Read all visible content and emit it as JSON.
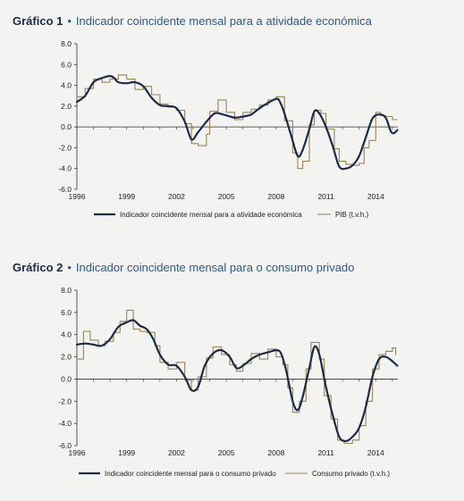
{
  "charts": [
    {
      "number": "Gráfico 1",
      "title": "Indicador coincidente mensal para a atividade económica"
    },
    {
      "number": "Gráfico 2",
      "title": "Indicador coincidente mensal para o consumo privado"
    }
  ],
  "chart_data": [
    {
      "type": "line",
      "title": "Indicador coincidente mensal para a atividade económica",
      "xlim": [
        1996,
        2015.33
      ],
      "ylim": [
        -6,
        8
      ],
      "x_ticks": [
        "1996",
        "1999",
        "2002",
        "2005",
        "2008",
        "2011",
        "2014"
      ],
      "y_ticks": [
        "8.0",
        "6.0",
        "4.0",
        "2.0",
        "0.0",
        "-2.0",
        "-4.0",
        "-6.0"
      ],
      "legend_position": "bottom",
      "series": [
        {
          "name": "Indicador coincidente mensal para a atividade económica",
          "color": "#1c2b4a",
          "style": "smooth",
          "points": [
            [
              1996.0,
              2.4
            ],
            [
              1996.5,
              3.0
            ],
            [
              1997.0,
              4.3
            ],
            [
              1997.5,
              4.7
            ],
            [
              1998.0,
              4.9
            ],
            [
              1998.25,
              4.7
            ],
            [
              1998.5,
              4.3
            ],
            [
              1999.0,
              4.2
            ],
            [
              1999.5,
              4.3
            ],
            [
              2000.0,
              3.9
            ],
            [
              2000.5,
              2.8
            ],
            [
              2001.0,
              2.1
            ],
            [
              2001.5,
              2.0
            ],
            [
              2002.0,
              1.8
            ],
            [
              2002.5,
              0.5
            ],
            [
              2002.9,
              -1.2
            ],
            [
              2003.3,
              -0.5
            ],
            [
              2003.8,
              0.5
            ],
            [
              2004.3,
              1.3
            ],
            [
              2004.8,
              1.2
            ],
            [
              2005.5,
              0.9
            ],
            [
              2006.0,
              1.0
            ],
            [
              2006.5,
              1.2
            ],
            [
              2007.0,
              1.8
            ],
            [
              2007.5,
              2.3
            ],
            [
              2008.0,
              2.7
            ],
            [
              2008.2,
              2.5
            ],
            [
              2008.5,
              1.3
            ],
            [
              2008.9,
              -0.8
            ],
            [
              2009.3,
              -2.8
            ],
            [
              2009.6,
              -2.2
            ],
            [
              2010.0,
              -0.2
            ],
            [
              2010.3,
              1.5
            ],
            [
              2010.6,
              1.3
            ],
            [
              2011.0,
              0.0
            ],
            [
              2011.4,
              -1.8
            ],
            [
              2011.8,
              -3.8
            ],
            [
              2012.2,
              -4.0
            ],
            [
              2012.6,
              -3.7
            ],
            [
              2013.0,
              -2.8
            ],
            [
              2013.4,
              -1.0
            ],
            [
              2013.8,
              0.8
            ],
            [
              2014.2,
              1.2
            ],
            [
              2014.6,
              0.9
            ],
            [
              2014.9,
              -0.4
            ],
            [
              2015.1,
              -0.6
            ],
            [
              2015.3,
              -0.3
            ]
          ]
        },
        {
          "name": "PIB (t.v.h.)",
          "color": "#9a8451",
          "style": "step",
          "points": [
            [
              1996.0,
              2.9
            ],
            [
              1996.5,
              3.7
            ],
            [
              1997.0,
              4.6
            ],
            [
              1997.5,
              4.3
            ],
            [
              1998.0,
              4.6
            ],
            [
              1998.5,
              5.0
            ],
            [
              1999.0,
              4.6
            ],
            [
              1999.5,
              3.6
            ],
            [
              2000.0,
              3.9
            ],
            [
              2000.5,
              3.1
            ],
            [
              2001.0,
              2.2
            ],
            [
              2001.5,
              1.9
            ],
            [
              2002.0,
              1.6
            ],
            [
              2002.5,
              0.3
            ],
            [
              2002.9,
              -1.6
            ],
            [
              2003.3,
              -1.8
            ],
            [
              2003.8,
              -0.7
            ],
            [
              2004.0,
              1.5
            ],
            [
              2004.5,
              2.6
            ],
            [
              2005.0,
              1.4
            ],
            [
              2005.5,
              0.7
            ],
            [
              2006.0,
              1.4
            ],
            [
              2006.5,
              1.7
            ],
            [
              2007.0,
              2.1
            ],
            [
              2007.5,
              2.6
            ],
            [
              2008.0,
              2.9
            ],
            [
              2008.5,
              0.6
            ],
            [
              2009.0,
              -2.5
            ],
            [
              2009.3,
              -4.0
            ],
            [
              2009.6,
              -3.3
            ],
            [
              2010.0,
              0.2
            ],
            [
              2010.3,
              1.6
            ],
            [
              2010.7,
              1.3
            ],
            [
              2011.0,
              -0.2
            ],
            [
              2011.5,
              -2.1
            ],
            [
              2011.8,
              -3.3
            ],
            [
              2012.2,
              -3.6
            ],
            [
              2012.6,
              -3.7
            ],
            [
              2013.0,
              -3.5
            ],
            [
              2013.3,
              -2.0
            ],
            [
              2013.6,
              -1.3
            ],
            [
              2014.0,
              1.4
            ],
            [
              2014.3,
              1.1
            ],
            [
              2014.6,
              1.0
            ],
            [
              2015.0,
              0.7
            ],
            [
              2015.3,
              0.7
            ]
          ]
        }
      ]
    },
    {
      "type": "line",
      "title": "Indicador coincidente mensal para o consumo privado",
      "xlim": [
        1996,
        2015.33
      ],
      "ylim": [
        -6,
        8
      ],
      "x_ticks": [
        "1996",
        "1999",
        "2002",
        "2005",
        "2008",
        "2011",
        "2014"
      ],
      "y_ticks": [
        "8.0",
        "6.0",
        "4.0",
        "2.0",
        "0.0",
        "-2.0",
        "-4.0",
        "-6.0"
      ],
      "legend_position": "bottom",
      "series": [
        {
          "name": "Indicador coincidente mensal para o consumo privado",
          "color": "#1c2b4a",
          "style": "smooth",
          "points": [
            [
              1996.0,
              3.1
            ],
            [
              1996.5,
              3.2
            ],
            [
              1997.0,
              3.1
            ],
            [
              1997.5,
              3.0
            ],
            [
              1998.0,
              3.6
            ],
            [
              1998.5,
              4.7
            ],
            [
              1999.0,
              5.1
            ],
            [
              1999.4,
              5.3
            ],
            [
              1999.8,
              4.8
            ],
            [
              2000.2,
              4.5
            ],
            [
              2000.6,
              3.6
            ],
            [
              2001.0,
              2.2
            ],
            [
              2001.5,
              1.3
            ],
            [
              2002.0,
              1.2
            ],
            [
              2002.5,
              0.2
            ],
            [
              2002.9,
              -1.0
            ],
            [
              2003.3,
              -0.7
            ],
            [
              2003.7,
              1.2
            ],
            [
              2004.2,
              2.3
            ],
            [
              2004.7,
              2.6
            ],
            [
              2005.2,
              2.0
            ],
            [
              2005.6,
              1.0
            ],
            [
              2006.0,
              1.2
            ],
            [
              2006.5,
              1.8
            ],
            [
              2007.0,
              2.2
            ],
            [
              2007.5,
              2.4
            ],
            [
              2008.0,
              2.6
            ],
            [
              2008.3,
              2.3
            ],
            [
              2008.6,
              0.8
            ],
            [
              2009.0,
              -2.0
            ],
            [
              2009.3,
              -2.8
            ],
            [
              2009.6,
              -1.6
            ],
            [
              2010.0,
              1.0
            ],
            [
              2010.3,
              2.9
            ],
            [
              2010.6,
              2.2
            ],
            [
              2011.0,
              -0.7
            ],
            [
              2011.4,
              -3.2
            ],
            [
              2011.8,
              -5.2
            ],
            [
              2012.2,
              -5.6
            ],
            [
              2012.6,
              -5.2
            ],
            [
              2013.0,
              -4.4
            ],
            [
              2013.4,
              -2.5
            ],
            [
              2013.8,
              0.2
            ],
            [
              2014.2,
              1.8
            ],
            [
              2014.6,
              2.0
            ],
            [
              2015.0,
              1.6
            ],
            [
              2015.3,
              1.2
            ]
          ]
        },
        {
          "name": "Consumo privado (t.v.h.)",
          "color": "#9a8451",
          "style": "step",
          "points": [
            [
              1996.0,
              1.8
            ],
            [
              1996.4,
              4.3
            ],
            [
              1996.8,
              3.5
            ],
            [
              1997.3,
              3.0
            ],
            [
              1997.7,
              3.4
            ],
            [
              1998.2,
              4.2
            ],
            [
              1998.6,
              5.2
            ],
            [
              1999.0,
              6.2
            ],
            [
              1999.4,
              4.5
            ],
            [
              1999.8,
              4.3
            ],
            [
              2000.2,
              4.2
            ],
            [
              2000.7,
              3.0
            ],
            [
              2001.0,
              1.5
            ],
            [
              2001.5,
              0.9
            ],
            [
              2002.0,
              1.5
            ],
            [
              2002.5,
              -0.1
            ],
            [
              2002.9,
              -1.0
            ],
            [
              2003.3,
              0.2
            ],
            [
              2003.8,
              1.9
            ],
            [
              2004.2,
              2.9
            ],
            [
              2004.7,
              2.2
            ],
            [
              2005.2,
              1.3
            ],
            [
              2005.6,
              0.7
            ],
            [
              2006.0,
              1.4
            ],
            [
              2006.5,
              2.3
            ],
            [
              2007.0,
              1.8
            ],
            [
              2007.5,
              2.7
            ],
            [
              2008.0,
              2.0
            ],
            [
              2008.4,
              1.3
            ],
            [
              2008.7,
              -0.8
            ],
            [
              2009.0,
              -3.0
            ],
            [
              2009.4,
              -2.0
            ],
            [
              2009.8,
              0.9
            ],
            [
              2010.1,
              3.3
            ],
            [
              2010.6,
              1.8
            ],
            [
              2010.9,
              -1.5
            ],
            [
              2011.3,
              -3.6
            ],
            [
              2011.7,
              -5.5
            ],
            [
              2012.1,
              -5.8
            ],
            [
              2012.6,
              -5.5
            ],
            [
              2013.0,
              -4.2
            ],
            [
              2013.4,
              -2.0
            ],
            [
              2013.8,
              0.9
            ],
            [
              2014.2,
              2.2
            ],
            [
              2014.6,
              2.5
            ],
            [
              2015.0,
              2.8
            ],
            [
              2015.2,
              2.2
            ]
          ]
        }
      ]
    }
  ]
}
